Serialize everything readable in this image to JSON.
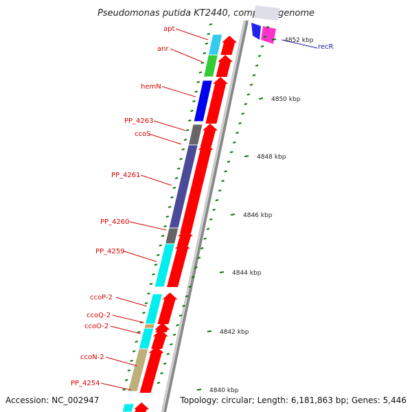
{
  "title": "Pseudomonas putida KT2440, complete genome",
  "footer": {
    "accession": "Accession: NC_002947",
    "topology": "Topology: circular; Length: 6,181,863 bp; Genes: 5,446"
  },
  "colors": {
    "cds_arrow": "#ff0000",
    "backbone": "#888888",
    "tick": "#007700",
    "label_left": "#d40000",
    "label_right": "#1a1aa0"
  },
  "genes_left": [
    {
      "label": "apt",
      "color": "#33ccee"
    },
    {
      "label": "anr",
      "color": "#33cc33"
    },
    {
      "label": "hemN",
      "color": "#0000ee"
    },
    {
      "label": "PP_4263",
      "color": "#666666"
    },
    {
      "label": "ccoS",
      "color": "#666666"
    },
    {
      "label": "PP_4261",
      "color": "#4a4a99"
    },
    {
      "label": "PP_4260",
      "color": "#666666"
    },
    {
      "label": "PP_4259",
      "color": "#00eeee"
    },
    {
      "label": "ccoP-2",
      "color": "#00eeee"
    },
    {
      "label": "ccoQ-2",
      "color": "#c8a060"
    },
    {
      "label": "ccoO-2",
      "color": "#00eeee"
    },
    {
      "label": "ccoN-2",
      "color": "#bdb07a"
    },
    {
      "label": "PP_4254",
      "color": "#00eeee"
    }
  ],
  "genes_right": [
    {
      "label": "recR",
      "color": "#ff33cc"
    }
  ],
  "kbp_labels": [
    "4852 kbp",
    "4850 kbp",
    "4848 kbp",
    "4846 kbp",
    "4844 kbp",
    "4842 kbp",
    "4840 kbp"
  ]
}
